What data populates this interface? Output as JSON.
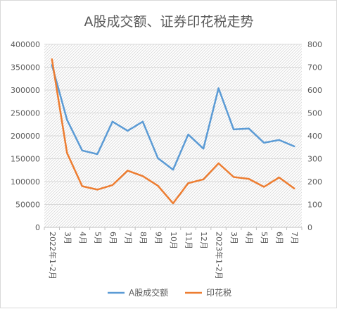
{
  "chart_data": {
    "type": "line",
    "title": "A股成交额、证券印花税走势",
    "categories": [
      "2022年1-2月",
      "3月",
      "4月",
      "5月",
      "6月",
      "7月",
      "8月",
      "9月",
      "10月",
      "11月",
      "12月",
      "2023年1-2月",
      "3月",
      "4月",
      "5月",
      "6月",
      "7月"
    ],
    "series": [
      {
        "name": "A股成交额",
        "axis": "left",
        "color": "#5b9bd5",
        "values": [
          355000,
          235000,
          168000,
          160000,
          231000,
          211000,
          231000,
          151000,
          126000,
          203000,
          172000,
          304000,
          214000,
          216000,
          185000,
          191000,
          177000
        ]
      },
      {
        "name": "印花税",
        "axis": "right",
        "color": "#ed7d31",
        "values": [
          735,
          325,
          180,
          165,
          185,
          248,
          224,
          182,
          105,
          193,
          210,
          280,
          220,
          212,
          177,
          218,
          170
        ]
      }
    ],
    "y_left": {
      "range": [
        0,
        400000
      ],
      "ticks": [
        "0",
        "50000",
        "100000",
        "150000",
        "200000",
        "250000",
        "300000",
        "350000",
        "400000"
      ]
    },
    "y_right": {
      "range": [
        0,
        800
      ],
      "ticks": [
        "0",
        "100",
        "200",
        "300",
        "400",
        "500",
        "600",
        "700",
        "800"
      ]
    },
    "grid": true,
    "background": "diagonal-hatch",
    "legend_position": "bottom"
  }
}
